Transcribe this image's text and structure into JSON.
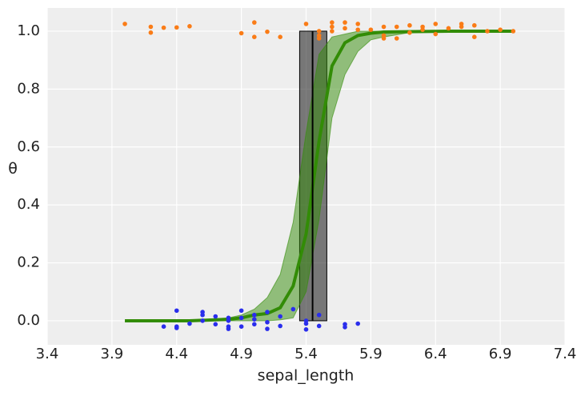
{
  "chart_data": {
    "type": "scatter",
    "xlabel": "sepal_length",
    "ylabel": "θ",
    "xlim": [
      3.4,
      7.4
    ],
    "ylim": [
      -0.083,
      1.08
    ],
    "xticks": [
      3.4,
      3.9,
      4.4,
      4.9,
      5.4,
      5.9,
      6.4,
      6.9,
      7.4
    ],
    "yticks": [
      {
        "value": 0,
        "label": "0.0"
      },
      0.2,
      0.4,
      0.6,
      0.8,
      {
        "value": 1,
        "label": "1.0"
      }
    ],
    "grid": true,
    "scatter": [
      {
        "color": "#fa7c17",
        "x": [
          4.0,
          4.2,
          4.2,
          4.3,
          4.4,
          4.5,
          4.9,
          5.0,
          5.0,
          5.1,
          5.2,
          5.4,
          5.5,
          5.5,
          5.5,
          5.6,
          5.6,
          5.6,
          5.7,
          5.7,
          5.8,
          5.8,
          5.9,
          6.0,
          6.0,
          6.0,
          6.1,
          6.1,
          6.2,
          6.2,
          6.3,
          6.3,
          6.4,
          6.4,
          6.5,
          6.6,
          6.6,
          6.7,
          6.7,
          6.8,
          6.9,
          7.0
        ],
        "values": [
          1.025,
          1.015,
          0.995,
          1.012,
          1.013,
          1.017,
          0.993,
          1.03,
          0.98,
          0.998,
          0.98,
          1.025,
          1.0,
          0.985,
          0.975,
          1.03,
          1.015,
          1.0,
          1.03,
          1.01,
          1.025,
          1.005,
          1.005,
          1.015,
          0.975,
          0.985,
          1.015,
          0.975,
          1.02,
          0.995,
          1.015,
          1.005,
          1.025,
          0.99,
          1.01,
          1.025,
          1.015,
          1.02,
          0.98,
          1.0,
          1.005,
          1.0
        ]
      },
      {
        "color": "#2a2eec",
        "x": [
          4.3,
          4.4,
          4.4,
          4.4,
          4.5,
          4.6,
          4.6,
          4.6,
          4.7,
          4.7,
          4.8,
          4.8,
          4.8,
          4.8,
          4.9,
          4.9,
          4.9,
          5.0,
          5.0,
          5.0,
          5.1,
          5.1,
          5.1,
          5.2,
          5.2,
          5.3,
          5.4,
          5.4,
          5.4,
          5.5,
          5.5,
          5.7,
          5.7,
          5.8
        ],
        "values": [
          -0.02,
          0.035,
          -0.02,
          -0.025,
          -0.01,
          0.03,
          0.02,
          0.0,
          0.015,
          -0.012,
          0.01,
          -0.02,
          -0.028,
          0.0,
          0.035,
          0.01,
          -0.02,
          0.02,
          0.005,
          -0.012,
          0.03,
          -0.005,
          -0.028,
          0.015,
          -0.018,
          0.04,
          0.0,
          -0.01,
          -0.03,
          0.02,
          -0.018,
          -0.012,
          -0.022,
          -0.01
        ]
      }
    ],
    "band": {
      "color": "#328c06",
      "x": [
        4.0,
        4.5,
        4.8,
        4.9,
        5.0,
        5.1,
        5.2,
        5.3,
        5.4,
        5.5,
        5.6,
        5.7,
        5.8,
        5.9,
        6.0,
        6.2,
        6.5,
        7.0
      ],
      "lower": [
        0,
        0,
        0,
        0,
        0,
        0,
        0.003,
        0.01,
        0.1,
        0.35,
        0.7,
        0.85,
        0.93,
        0.97,
        0.98,
        0.995,
        0.999,
        1.0
      ],
      "upper": [
        0,
        0.002,
        0.01,
        0.02,
        0.04,
        0.08,
        0.16,
        0.34,
        0.65,
        0.92,
        0.98,
        0.99,
        1.0,
        1.0,
        1.0,
        1.0,
        1.0,
        1.0
      ]
    },
    "curve": {
      "color": "#328c06",
      "x": [
        4.0,
        4.5,
        4.8,
        4.9,
        5.0,
        5.1,
        5.2,
        5.3,
        5.4,
        5.5,
        5.6,
        5.7,
        5.8,
        5.9,
        6.0,
        6.5,
        7.0
      ],
      "values": [
        0,
        0,
        0.005,
        0.01,
        0.02,
        0.025,
        0.045,
        0.12,
        0.3,
        0.62,
        0.88,
        0.96,
        0.985,
        0.993,
        0.997,
        1.0,
        1.0
      ]
    },
    "boundary": {
      "color": "#000000",
      "value": 5.45,
      "lower": 5.35,
      "upper": 5.56
    }
  }
}
